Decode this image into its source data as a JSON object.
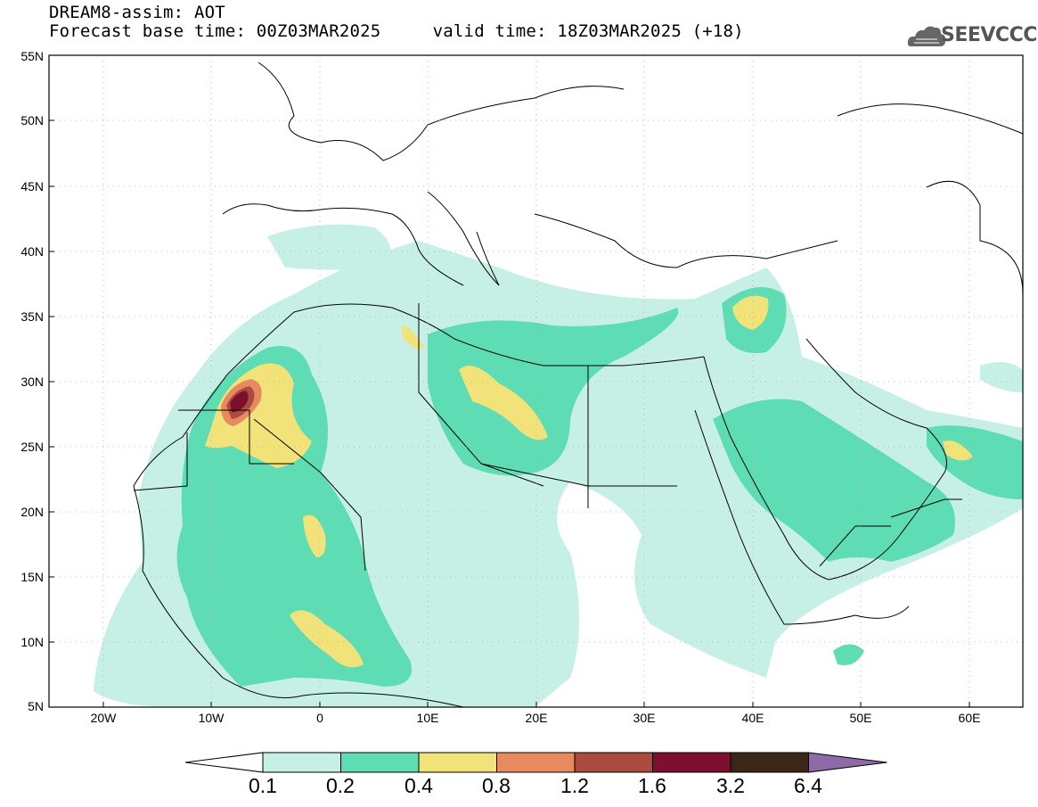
{
  "title": {
    "line1": "DREAM8-assim: AOT",
    "line2": "Forecast base time: 00Z03MAR2025     valid time: 18Z03MAR2025 (+18)"
  },
  "logo": {
    "text": "SEEVCCC",
    "icon": "cloud-logo-icon",
    "color": "#555555"
  },
  "map": {
    "lon_range": [
      -25,
      65
    ],
    "lat_range": [
      5,
      55
    ],
    "lat_ticks": [
      "55N",
      "50N",
      "45N",
      "40N",
      "35N",
      "30N",
      "25N",
      "20N",
      "15N",
      "10N",
      "5N"
    ],
    "lon_ticks": [
      "20W",
      "10W",
      "0",
      "10E",
      "20E",
      "30E",
      "40E",
      "50E",
      "60E"
    ],
    "grid": "dotted"
  },
  "colorbar": {
    "labels": [
      "0.1",
      "0.2",
      "0.4",
      "0.8",
      "1.2",
      "1.6",
      "3.2",
      "6.4"
    ],
    "colors": [
      "#ffffff",
      "#c6f0e6",
      "#5edcb3",
      "#f2e27a",
      "#e88a60",
      "#a94c3f",
      "#7d0f2f",
      "#3a271a",
      "#8e6aa8"
    ]
  }
}
